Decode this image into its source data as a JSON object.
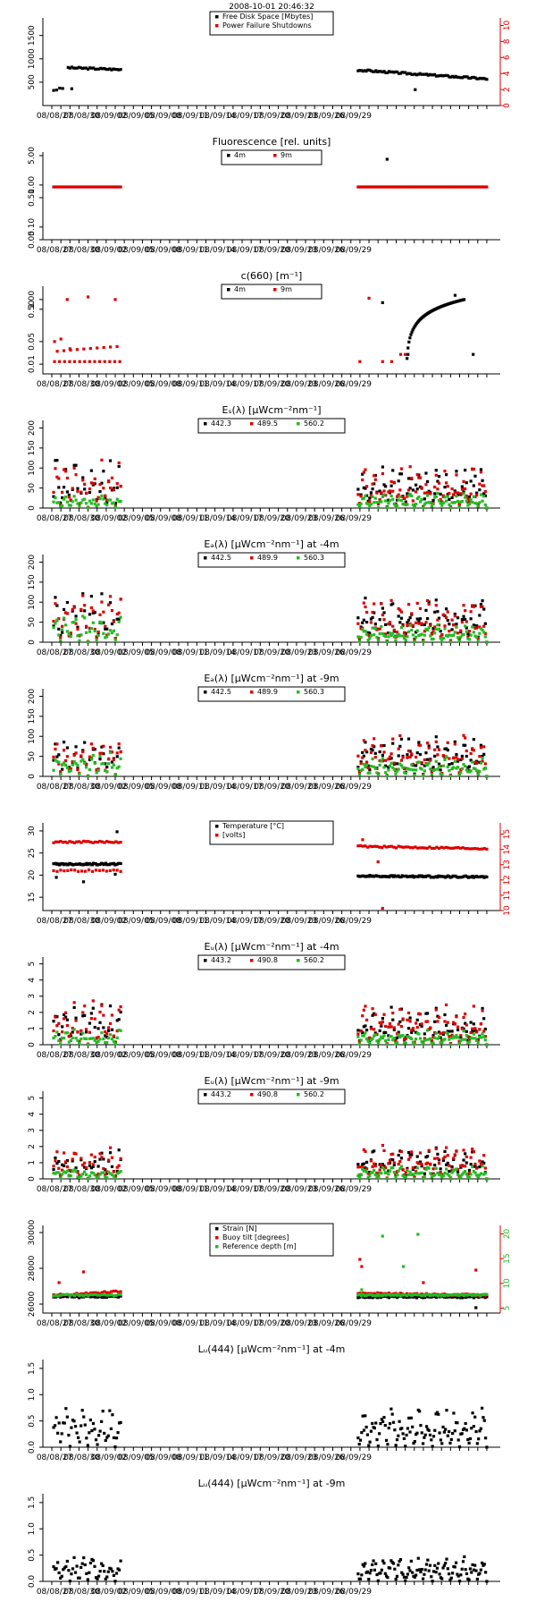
{
  "date_labels": [
    "08/08/27",
    "08/08/30",
    "08/09/02",
    "08/09/05",
    "08/09/08",
    "08/09/11",
    "08/09/14",
    "08/09/17",
    "08/09/20",
    "08/09/23",
    "08/09/26",
    "08/09/29"
  ],
  "colors": {
    "black": "#000000",
    "red": "#dd0000",
    "green": "#22bb22"
  },
  "chart_data": [
    {
      "type": "scatter",
      "title": "2008-10-01 20:46:32",
      "y_ticks": [
        "500",
        "1000",
        "1500"
      ],
      "ylim": [
        0,
        1800
      ],
      "y2_ticks": [
        "0",
        "2",
        "4",
        "6",
        "8",
        "10"
      ],
      "y2lim": [
        0,
        10.5
      ],
      "legend": [
        "Free Disk Space [Mbytes]",
        "Power Failure Shutdowns"
      ],
      "legend_position": "top-center",
      "series": [
        {
          "name": "Free Disk Space [Mbytes]",
          "color": "#000000",
          "segments": [
            {
              "x0": 0.2,
              "x1": 1.2,
              "y0": 330,
              "y1": 370,
              "n": 4
            },
            {
              "x0": 1.8,
              "x1": 7.6,
              "y0": 810,
              "y1": 770,
              "n": 30
            },
            {
              "x0": 33.8,
              "x1": 48.0,
              "y0": 760,
              "y1": 570,
              "n": 80
            }
          ],
          "points": [
            [
              2.2,
              360
            ],
            [
              40.1,
              340
            ]
          ]
        },
        {
          "name": "Power Failure Shutdowns",
          "color": "#dd0000",
          "points": []
        }
      ]
    },
    {
      "type": "scatter",
      "title": "Fluorescence [rel. units]",
      "y_ticks": [
        "0.05",
        "0.10",
        "0.50",
        "1.00",
        "5.00"
      ],
      "ylim": [
        0.05,
        5
      ],
      "log": true,
      "legend": [
        "4m",
        "9m"
      ],
      "legend_position": "top-center",
      "series": [
        {
          "name": "9m",
          "color": "#dd0000",
          "segments": [
            {
              "x0": 0.2,
              "x1": 7.6,
              "y0": 0.9,
              "y1": 0.9,
              "n": 40
            },
            {
              "x0": 33.8,
              "x1": 48.0,
              "y0": 0.9,
              "y1": 0.9,
              "n": 90
            }
          ],
          "points": []
        },
        {
          "name": "4m",
          "color": "#000000",
          "points": [
            [
              37.0,
              4.1
            ]
          ]
        }
      ]
    },
    {
      "type": "scatter",
      "title": "c(660) [m⁻¹]",
      "y_ticks": [
        "0.01",
        "0.05",
        "0.50",
        "1.00"
      ],
      "ylim": [
        0.005,
        2
      ],
      "log": true,
      "legend": [
        "4m",
        "9m"
      ],
      "legend_position": "top-center",
      "series": [
        {
          "name": "9m",
          "color": "#dd0000",
          "segments": [
            {
              "x0": 0.3,
              "x1": 7.5,
              "y0": 0.012,
              "y1": 0.012,
              "n": 14
            },
            {
              "x0": 0.6,
              "x1": 7.2,
              "y0": 0.025,
              "y1": 0.035,
              "n": 10
            }
          ],
          "points": [
            [
              0.3,
              0.05
            ],
            [
              1.0,
              0.06
            ],
            [
              2.0,
              0.03
            ],
            [
              1.7,
              1.0
            ],
            [
              4.0,
              1.2
            ],
            [
              7.0,
              1.0
            ],
            [
              35.0,
              1.1
            ],
            [
              34.0,
              0.012
            ],
            [
              36.5,
              0.012
            ],
            [
              37.5,
              0.012
            ],
            [
              38.5,
              0.02
            ],
            [
              39.0,
              0.02
            ]
          ]
        },
        {
          "name": "4m",
          "color": "#000000",
          "segments": [
            {
              "x0": 39.2,
              "x1": 45.5,
              "y0": 0.015,
              "y1": 1.0,
              "n": 60
            }
          ],
          "points": [
            [
              36.5,
              0.8
            ],
            [
              44.5,
              1.35
            ],
            [
              46.5,
              0.02
            ],
            [
              39.3,
              0.02
            ]
          ]
        }
      ]
    },
    {
      "type": "scatter",
      "title": "Eₛ(λ) [μWcm⁻²nm⁻¹]",
      "y_ticks": [
        "0",
        "50",
        "100",
        "150",
        "200"
      ],
      "ylim": [
        0,
        210
      ],
      "legend": [
        "442.3",
        "489.5",
        "560.2"
      ],
      "legend_position": "top-center",
      "series": [
        {
          "name": "442.3",
          "color": "#000000",
          "cycles": [
            {
              "x0": 0.2,
              "x1": 7.6,
              "amp": 130,
              "n": 40
            },
            {
              "x0": 33.8,
              "x1": 48.0,
              "amp": 110,
              "n": 90
            }
          ]
        },
        {
          "name": "489.5",
          "color": "#dd0000",
          "cycles": [
            {
              "x0": 0.2,
              "x1": 7.6,
              "amp": 120,
              "n": 40
            },
            {
              "x0": 33.8,
              "x1": 48.0,
              "amp": 105,
              "n": 90
            }
          ]
        },
        {
          "name": "560.2",
          "color": "#22bb22",
          "cycles": [
            {
              "x0": 0.2,
              "x1": 7.6,
              "amp": 35,
              "n": 40
            },
            {
              "x0": 33.8,
              "x1": 48.0,
              "amp": 40,
              "n": 90
            }
          ]
        }
      ]
    },
    {
      "type": "scatter",
      "title": "Eₔ(λ) [μWcm⁻²nm⁻¹] at -4m",
      "y_ticks": [
        "0",
        "50",
        "100",
        "150",
        "200"
      ],
      "ylim": [
        0,
        210
      ],
      "legend": [
        "442.5",
        "489.9",
        "560.3"
      ],
      "legend_position": "top-center",
      "series": [
        {
          "name": "442.5",
          "color": "#000000",
          "cycles": [
            {
              "x0": 0.2,
              "x1": 7.6,
              "amp": 130,
              "n": 40
            },
            {
              "x0": 33.8,
              "x1": 48.0,
              "amp": 120,
              "n": 90
            }
          ]
        },
        {
          "name": "489.9",
          "color": "#dd0000",
          "cycles": [
            {
              "x0": 0.2,
              "x1": 7.6,
              "amp": 125,
              "n": 40
            },
            {
              "x0": 33.8,
              "x1": 48.0,
              "amp": 115,
              "n": 90
            }
          ]
        },
        {
          "name": "560.3",
          "color": "#22bb22",
          "cycles": [
            {
              "x0": 0.2,
              "x1": 7.6,
              "amp": 70,
              "n": 40
            },
            {
              "x0": 33.8,
              "x1": 48.0,
              "amp": 45,
              "n": 90
            }
          ]
        }
      ]
    },
    {
      "type": "scatter",
      "title": "Eₔ(λ) [μWcm⁻²nm⁻¹] at -9m",
      "y_ticks": [
        "0",
        "50",
        "100",
        "150",
        "200"
      ],
      "ylim": [
        0,
        210
      ],
      "legend": [
        "442.5",
        "489.9",
        "560.3"
      ],
      "legend_position": "top-center",
      "series": [
        {
          "name": "442.5",
          "color": "#000000",
          "cycles": [
            {
              "x0": 0.2,
              "x1": 7.6,
              "amp": 100,
              "n": 40
            },
            {
              "x0": 33.8,
              "x1": 48.0,
              "amp": 110,
              "n": 90
            }
          ]
        },
        {
          "name": "489.9",
          "color": "#dd0000",
          "cycles": [
            {
              "x0": 0.2,
              "x1": 7.6,
              "amp": 95,
              "n": 40
            },
            {
              "x0": 33.8,
              "x1": 48.0,
              "amp": 105,
              "n": 90
            }
          ]
        },
        {
          "name": "560.3",
          "color": "#22bb22",
          "cycles": [
            {
              "x0": 0.2,
              "x1": 7.6,
              "amp": 65,
              "n": 40
            },
            {
              "x0": 33.8,
              "x1": 48.0,
              "amp": 50,
              "n": 90
            }
          ]
        }
      ]
    },
    {
      "type": "scatter",
      "title": "",
      "y_ticks": [
        "15",
        "20",
        "25",
        "30"
      ],
      "ylim": [
        12,
        31
      ],
      "y2_ticks": [
        "10",
        "11",
        "12",
        "13",
        "14",
        "15"
      ],
      "y2lim": [
        10,
        15.5
      ],
      "legend": [
        "Temperature [°C]",
        "[volts]"
      ],
      "legend_position": "top-center",
      "series": [
        {
          "name": "Temperature [°C]",
          "color": "#000000",
          "segments": [
            {
              "x0": 0.2,
              "x1": 7.6,
              "y0": 22.5,
              "y1": 22.5,
              "n": 60
            },
            {
              "x0": 33.8,
              "x1": 48.0,
              "y0": 19.8,
              "y1": 19.6,
              "n": 100
            }
          ],
          "points": [
            [
              0.5,
              19.5
            ],
            [
              3.5,
              18.5
            ],
            [
              7.2,
              29.8
            ],
            [
              7.0,
              20.2
            ]
          ]
        },
        {
          "name": "[volts]",
          "color": "#dd0000",
          "segments": [
            {
              "x0": 0.2,
              "x1": 7.6,
              "y0": 27.5,
              "y1": 27.5,
              "n": 30
            },
            {
              "x0": 0.2,
              "x1": 7.6,
              "y0": 21.0,
              "y1": 21.0,
              "n": 20
            },
            {
              "x0": 33.8,
              "x1": 48.0,
              "y0": 26.5,
              "y1": 26.0,
              "n": 55
            }
          ],
          "points": [
            [
              36.5,
              12.5
            ],
            [
              34.3,
              28.0
            ],
            [
              36.0,
              23.0
            ]
          ]
        }
      ]
    },
    {
      "type": "scatter",
      "title": "Eᵤ(λ) [μWcm⁻²nm⁻¹] at -4m",
      "y_ticks": [
        "0",
        "1",
        "2",
        "3",
        "4",
        "5"
      ],
      "ylim": [
        0,
        5.2
      ],
      "legend": [
        "443.2",
        "490.8",
        "560.2"
      ],
      "legend_position": "top-center",
      "series": [
        {
          "name": "443.2",
          "color": "#000000",
          "cycles": [
            {
              "x0": 0.2,
              "x1": 7.6,
              "amp": 2.5,
              "n": 40
            },
            {
              "x0": 33.8,
              "x1": 48.0,
              "amp": 2.4,
              "n": 90
            }
          ]
        },
        {
          "name": "490.8",
          "color": "#dd0000",
          "cycles": [
            {
              "x0": 0.2,
              "x1": 7.6,
              "amp": 2.8,
              "n": 40
            },
            {
              "x0": 33.8,
              "x1": 48.0,
              "amp": 2.5,
              "n": 90
            }
          ]
        },
        {
          "name": "560.2",
          "color": "#22bb22",
          "cycles": [
            {
              "x0": 0.2,
              "x1": 7.6,
              "amp": 1.0,
              "n": 40
            },
            {
              "x0": 33.8,
              "x1": 48.0,
              "amp": 0.9,
              "n": 90
            }
          ]
        }
      ]
    },
    {
      "type": "scatter",
      "title": "Eᵤ(λ) [μWcm⁻²nm⁻¹] at -9m",
      "y_ticks": [
        "0",
        "1",
        "2",
        "3",
        "4",
        "5"
      ],
      "ylim": [
        0,
        5.2
      ],
      "legend": [
        "443.2",
        "490.8",
        "560.2"
      ],
      "legend_position": "top-center",
      "series": [
        {
          "name": "443.2",
          "color": "#000000",
          "cycles": [
            {
              "x0": 0.2,
              "x1": 7.6,
              "amp": 2.0,
              "n": 40
            },
            {
              "x0": 33.8,
              "x1": 48.0,
              "amp": 2.0,
              "n": 90
            }
          ]
        },
        {
          "name": "490.8",
          "color": "#dd0000",
          "cycles": [
            {
              "x0": 0.2,
              "x1": 7.6,
              "amp": 2.0,
              "n": 40
            },
            {
              "x0": 33.8,
              "x1": 48.0,
              "amp": 2.1,
              "n": 90
            }
          ]
        },
        {
          "name": "560.2",
          "color": "#22bb22",
          "cycles": [
            {
              "x0": 0.2,
              "x1": 7.6,
              "amp": 0.7,
              "n": 40
            },
            {
              "x0": 33.8,
              "x1": 48.0,
              "amp": 0.8,
              "n": 90
            }
          ]
        }
      ]
    },
    {
      "type": "scatter",
      "title": "",
      "y_ticks": [
        "26000",
        "28000",
        "30000"
      ],
      "ylim": [
        25500,
        30200
      ],
      "y2_ticks": [
        "5",
        "10",
        "15",
        "20"
      ],
      "y2lim": [
        4,
        21
      ],
      "legend": [
        "Strain [N]",
        "Buoy tilt [degrees]",
        "Reference depth [m]"
      ],
      "legend_position": "top-center",
      "series": [
        {
          "name": "Strain [N]",
          "color": "#000000",
          "segments": [
            {
              "x0": 0.2,
              "x1": 7.6,
              "y0": 26400,
              "y1": 26400,
              "n": 30
            },
            {
              "x0": 33.8,
              "x1": 48.0,
              "y0": 26400,
              "y1": 26400,
              "n": 80
            }
          ],
          "points": [
            [
              46.8,
              25800
            ]
          ]
        },
        {
          "name": "Buoy tilt [degrees]",
          "color": "#dd0000",
          "segments": [
            {
              "x0": 0.2,
              "x1": 7.6,
              "y0": 26500,
              "y1": 26700,
              "n": 30
            },
            {
              "x0": 33.8,
              "x1": 48.0,
              "y0": 26600,
              "y1": 26500,
              "n": 80
            }
          ],
          "points": [
            [
              3.5,
              27800
            ],
            [
              0.8,
              27200
            ],
            [
              34.0,
              28500
            ],
            [
              34.2,
              28100
            ],
            [
              41.0,
              27200
            ],
            [
              46.8,
              27900
            ]
          ]
        },
        {
          "name": "Reference depth [m]",
          "color": "#22bb22",
          "segments": [
            {
              "x0": 0.2,
              "x1": 7.6,
              "y0": 26500,
              "y1": 26500,
              "n": 30
            },
            {
              "x0": 33.8,
              "x1": 48.0,
              "y0": 26500,
              "y1": 26500,
              "n": 80
            }
          ],
          "points": [
            [
              36.5,
              29800
            ],
            [
              38.8,
              28100
            ],
            [
              40.4,
              29900
            ],
            [
              34.2,
              26800
            ]
          ]
        }
      ]
    },
    {
      "type": "scatter",
      "title": "Lᵤ(444) [μWcm⁻²nm⁻¹] at -4m",
      "y_ticks": [
        "0.0",
        "0.5",
        "1.0",
        "1.5"
      ],
      "ylim": [
        0,
        1.6
      ],
      "legend": [],
      "series": [
        {
          "name": "",
          "color": "#000000",
          "cycles": [
            {
              "x0": 0.2,
              "x1": 7.6,
              "amp": 0.8,
              "n": 50
            },
            {
              "x0": 33.8,
              "x1": 48.0,
              "amp": 0.75,
              "n": 110
            }
          ]
        }
      ]
    },
    {
      "type": "scatter",
      "title": "Lᵤ(444) [μWcm⁻²nm⁻¹] at -9m",
      "y_ticks": [
        "0.0",
        "0.5",
        "1.0",
        "1.5"
      ],
      "ylim": [
        0,
        1.6
      ],
      "legend": [],
      "series": [
        {
          "name": "",
          "color": "#000000",
          "cycles": [
            {
              "x0": 0.2,
              "x1": 7.6,
              "amp": 0.5,
              "n": 50
            },
            {
              "x0": 33.8,
              "x1": 48.0,
              "amp": 0.5,
              "n": 110
            }
          ]
        }
      ]
    }
  ]
}
